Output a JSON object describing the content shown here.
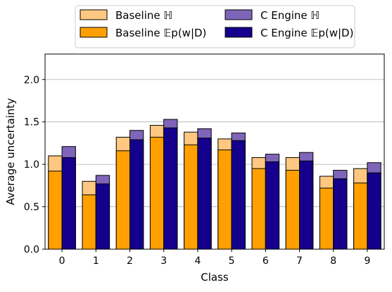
{
  "chart_data": {
    "type": "bar",
    "xlabel": "Class",
    "ylabel": "Average uncertainty",
    "ylim": [
      0,
      2.3
    ],
    "yticks": [
      {
        "value": 0.0,
        "label": "0.0"
      },
      {
        "value": 0.5,
        "label": "0.5"
      },
      {
        "value": 1.0,
        "label": "1.0"
      },
      {
        "value": 1.5,
        "label": "1.5"
      },
      {
        "value": 2.0,
        "label": "2.0"
      }
    ],
    "grid": "horizontal",
    "legend_placement": "top-center, above plot",
    "categories": [
      "0",
      "1",
      "2",
      "3",
      "4",
      "5",
      "6",
      "7",
      "8",
      "9"
    ],
    "groups": [
      {
        "name": "Baseline",
        "total_entropy": {
          "legend_label": "Baseline ℍ",
          "color": "#FFC780",
          "values": [
            1.1,
            0.8,
            1.32,
            1.46,
            1.38,
            1.3,
            1.08,
            1.08,
            0.86,
            0.95
          ]
        },
        "expected_entropy": {
          "legend_label": "Baseline 𝔼p(w|D)",
          "color": "#FFA000",
          "values": [
            0.92,
            0.64,
            1.16,
            1.32,
            1.23,
            1.17,
            0.95,
            0.93,
            0.72,
            0.78
          ]
        }
      },
      {
        "name": "C Engine",
        "total_entropy": {
          "legend_label": "C Engine ℍ",
          "color": "#7F65BA",
          "values": [
            1.21,
            0.87,
            1.4,
            1.53,
            1.42,
            1.37,
            1.12,
            1.14,
            0.93,
            1.02
          ]
        },
        "expected_entropy": {
          "legend_label": "C Engine 𝔼p(w|D)",
          "color": "#14008C",
          "values": [
            1.08,
            0.77,
            1.29,
            1.43,
            1.31,
            1.28,
            1.03,
            1.04,
            0.83,
            0.9
          ]
        }
      }
    ]
  }
}
